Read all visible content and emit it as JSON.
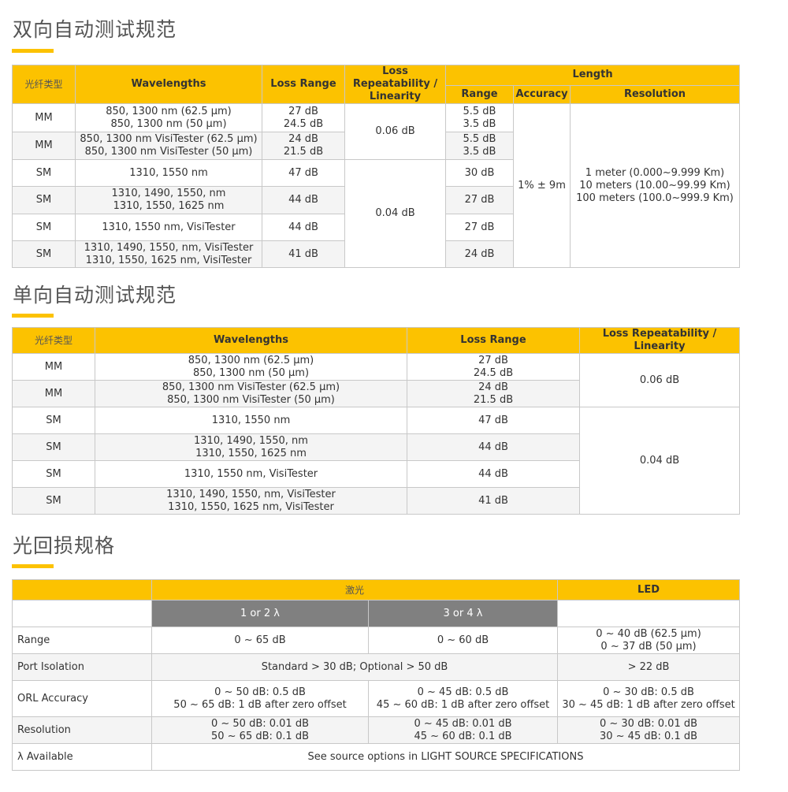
{
  "section1": {
    "title": "双向自动测试规范",
    "headers": {
      "fiber": "光纤类型",
      "wavelengths": "Wavelengths",
      "loss_range": "Loss Range",
      "repeat": "Loss Repeatability / Linearity",
      "length": "Length",
      "range": "Range",
      "accuracy": "Accuracy",
      "resolution": "Resolution"
    },
    "rows": [
      {
        "fiber": "MM",
        "wl": [
          "850, 1300 nm (62.5 µm)",
          "850, 1300 nm (50 µm)"
        ],
        "loss": [
          "27 dB",
          "24.5 dB"
        ],
        "range": [
          "5.5 dB",
          "3.5 dB"
        ]
      },
      {
        "fiber": "MM",
        "wl": [
          "850, 1300 nm VisiTester (62.5 µm)",
          "850, 1300 nm VisiTester (50 µm)"
        ],
        "loss": [
          "24 dB",
          "21.5 dB"
        ],
        "range": [
          "5.5 dB",
          "3.5 dB"
        ]
      },
      {
        "fiber": "SM",
        "wl": [
          "1310, 1550 nm"
        ],
        "loss": [
          "47 dB"
        ],
        "range": [
          "30 dB"
        ]
      },
      {
        "fiber": "SM",
        "wl": [
          "1310, 1490, 1550, nm",
          "1310, 1550, 1625 nm"
        ],
        "loss": [
          "44 dB"
        ],
        "range": [
          "27 dB"
        ]
      },
      {
        "fiber": "SM",
        "wl": [
          "1310, 1550 nm, VisiTester"
        ],
        "loss": [
          "44 dB"
        ],
        "range": [
          "27 dB"
        ]
      },
      {
        "fiber": "SM",
        "wl": [
          "1310, 1490, 1550, nm, VisiTester",
          "1310, 1550, 1625 nm, VisiTester"
        ],
        "loss": [
          "41 dB"
        ],
        "range": [
          "24 dB"
        ]
      }
    ],
    "repeat_mm": "0.06 dB",
    "repeat_sm": "0.04 dB",
    "accuracy": "1% ± 9m",
    "resolution": [
      "1 meter (0.000~9.999 Km)",
      "10 meters (10.00~99.99 Km)",
      "100 meters (100.0~999.9 Km)"
    ]
  },
  "section2": {
    "title": "单向自动测试规范",
    "headers": {
      "fiber": "光纤类型",
      "wavelengths": "Wavelengths",
      "loss_range": "Loss Range",
      "repeat": "Loss Repeatability / Linearity"
    },
    "rows": [
      {
        "fiber": "MM",
        "wl": [
          "850, 1300 nm (62.5 µm)",
          "850, 1300 nm (50 µm)"
        ],
        "loss": [
          "27 dB",
          "24.5 dB"
        ]
      },
      {
        "fiber": "MM",
        "wl": [
          "850, 1300 nm VisiTester (62.5 µm)",
          "850, 1300 nm VisiTester (50 µm)"
        ],
        "loss": [
          "24 dB",
          "21.5 dB"
        ]
      },
      {
        "fiber": "SM",
        "wl": [
          "1310, 1550 nm"
        ],
        "loss": [
          "47 dB"
        ]
      },
      {
        "fiber": "SM",
        "wl": [
          "1310, 1490, 1550, nm",
          "1310, 1550, 1625 nm"
        ],
        "loss": [
          "44 dB"
        ]
      },
      {
        "fiber": "SM",
        "wl": [
          "1310, 1550 nm, VisiTester"
        ],
        "loss": [
          "44 dB"
        ]
      },
      {
        "fiber": "SM",
        "wl": [
          "1310, 1490, 1550, nm, VisiTester",
          "1310, 1550, 1625 nm, VisiTester"
        ],
        "loss": [
          "41 dB"
        ]
      }
    ],
    "repeat_mm": "0.06 dB",
    "repeat_sm": "0.04 dB"
  },
  "section3": {
    "title": "光回损规格",
    "laser": "激光",
    "led": "LED",
    "sub1": "1 or 2 λ",
    "sub2": "3 or 4 λ",
    "range": {
      "label": "Range",
      "a": "0 ~ 65 dB",
      "b": "0 ~ 60 dB",
      "led": [
        "0 ~ 40 dB (62.5 µm)",
        "0 ~ 37 dB (50 µm)"
      ]
    },
    "port": {
      "label": "Port Isolation",
      "laser": "Standard > 30 dB; Optional > 50 dB",
      "led": "> 22 dB"
    },
    "orl": {
      "label": "ORL Accuracy",
      "a": [
        "0 ~ 50 dB: 0.5 dB",
        "50 ~ 65 dB: 1 dB after zero offset"
      ],
      "b": [
        "0 ~ 45 dB: 0.5 dB",
        "45 ~ 60 dB: 1 dB after zero offset"
      ],
      "led": [
        "0 ~ 30 dB: 0.5 dB",
        "30 ~ 45 dB: 1 dB after zero offset"
      ]
    },
    "res": {
      "label": "Resolution",
      "a": [
        "0 ~ 50 dB: 0.01 dB",
        "50 ~ 65 dB: 0.1 dB"
      ],
      "b": [
        "0 ~ 45 dB: 0.01 dB",
        "45 ~ 60 dB: 0.1 dB"
      ],
      "led": [
        "0 ~ 30 dB: 0.01 dB",
        "30 ~ 45 dB: 0.1 dB"
      ]
    },
    "lambda": {
      "label": "λ Available",
      "value": "See source options in LIGHT SOURCE SPECIFICATIONS"
    }
  },
  "colors": {
    "accent": "#fcc200",
    "subheader": "#808080"
  }
}
